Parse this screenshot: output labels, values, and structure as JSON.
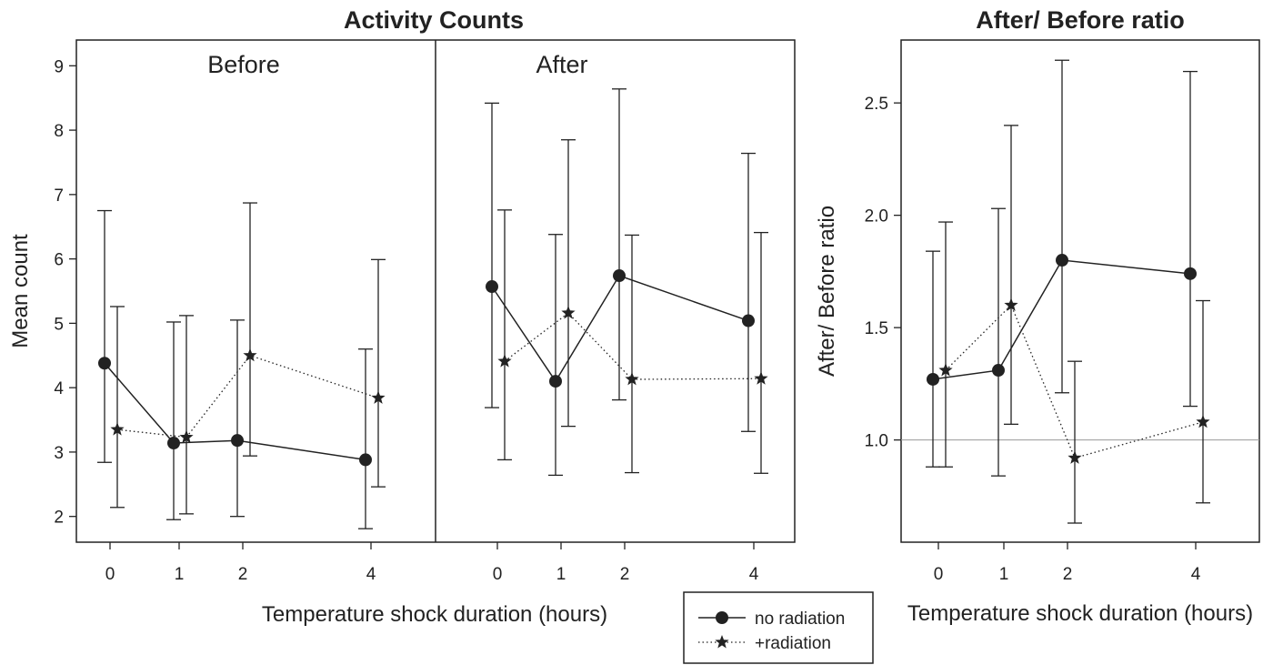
{
  "chart_data": [
    {
      "type": "line",
      "title": "Activity Counts",
      "ylabel": "Mean count",
      "xlabel": "Temperature shock duration (hours)",
      "ylim": [
        1.6,
        9.4
      ],
      "yticks": [
        2,
        3,
        4,
        5,
        6,
        7,
        8,
        9
      ],
      "xticks": [
        0,
        1,
        2,
        4
      ],
      "panels": [
        {
          "label": "Before",
          "series": [
            {
              "name": "no radiation",
              "style": "solid",
              "marker": "circle",
              "points": [
                {
                  "x": 0,
                  "y": 4.38,
                  "lo": 2.84,
                  "hi": 6.75
                },
                {
                  "x": 1,
                  "y": 3.14,
                  "lo": 1.95,
                  "hi": 5.02
                },
                {
                  "x": 2,
                  "y": 3.18,
                  "lo": 2.0,
                  "hi": 5.05
                },
                {
                  "x": 4,
                  "y": 2.88,
                  "lo": 1.81,
                  "hi": 4.6
                }
              ]
            },
            {
              "name": "+radiation",
              "style": "dotted",
              "marker": "star",
              "points": [
                {
                  "x": 0,
                  "y": 3.35,
                  "lo": 2.14,
                  "hi": 5.26
                },
                {
                  "x": 1,
                  "y": 3.23,
                  "lo": 2.04,
                  "hi": 5.12
                },
                {
                  "x": 2,
                  "y": 4.5,
                  "lo": 2.94,
                  "hi": 6.87
                },
                {
                  "x": 4,
                  "y": 3.84,
                  "lo": 2.46,
                  "hi": 5.99
                }
              ]
            }
          ]
        },
        {
          "label": "After",
          "series": [
            {
              "name": "no radiation",
              "style": "solid",
              "marker": "circle",
              "points": [
                {
                  "x": 0,
                  "y": 5.57,
                  "lo": 3.69,
                  "hi": 8.42
                },
                {
                  "x": 1,
                  "y": 4.1,
                  "lo": 2.64,
                  "hi": 6.38
                },
                {
                  "x": 2,
                  "y": 5.74,
                  "lo": 3.81,
                  "hi": 8.64
                },
                {
                  "x": 4,
                  "y": 5.04,
                  "lo": 3.32,
                  "hi": 7.64
                }
              ]
            },
            {
              "name": "+radiation",
              "style": "dotted",
              "marker": "star",
              "points": [
                {
                  "x": 0,
                  "y": 4.41,
                  "lo": 2.88,
                  "hi": 6.76
                },
                {
                  "x": 1,
                  "y": 5.16,
                  "lo": 3.4,
                  "hi": 7.85
                },
                {
                  "x": 2,
                  "y": 4.13,
                  "lo": 2.68,
                  "hi": 6.37
                },
                {
                  "x": 4,
                  "y": 4.14,
                  "lo": 2.67,
                  "hi": 6.41
                }
              ]
            }
          ]
        }
      ]
    },
    {
      "type": "line",
      "title": "After/ Before ratio",
      "ylabel": "After/ Before ratio",
      "xlabel": "Temperature shock duration (hours)",
      "ylim": [
        0.545,
        2.78
      ],
      "yticks": [
        "1.0",
        "1.5",
        "2.0",
        "2.5"
      ],
      "xticks": [
        0,
        1,
        2,
        4
      ],
      "reference_line": 1.0,
      "series": [
        {
          "name": "no radiation",
          "style": "solid",
          "marker": "circle",
          "points": [
            {
              "x": 0,
              "y": 1.27,
              "lo": 0.88,
              "hi": 1.84
            },
            {
              "x": 1,
              "y": 1.31,
              "lo": 0.84,
              "hi": 2.03
            },
            {
              "x": 2,
              "y": 1.8,
              "lo": 1.21,
              "hi": 2.69
            },
            {
              "x": 4,
              "y": 1.74,
              "lo": 1.15,
              "hi": 2.64
            }
          ]
        },
        {
          "name": "+radiation",
          "style": "dotted",
          "marker": "star",
          "points": [
            {
              "x": 0,
              "y": 1.31,
              "lo": 0.88,
              "hi": 1.97
            },
            {
              "x": 1,
              "y": 1.6,
              "lo": 1.07,
              "hi": 2.4
            },
            {
              "x": 2,
              "y": 0.92,
              "lo": 0.63,
              "hi": 1.35
            },
            {
              "x": 4,
              "y": 1.08,
              "lo": 0.72,
              "hi": 1.62
            }
          ]
        }
      ]
    }
  ],
  "legend": {
    "entries": [
      {
        "label": "no radiation",
        "style": "solid",
        "marker": "circle"
      },
      {
        "label": "+radiation",
        "style": "dotted",
        "marker": "star"
      }
    ],
    "placement": "bottom-center"
  },
  "colors": {
    "ink": "#222222",
    "reference": "#9a9a9a",
    "background": "#ffffff"
  }
}
